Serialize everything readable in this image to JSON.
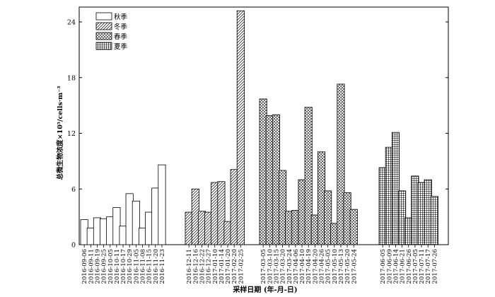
{
  "chart_data": {
    "type": "bar",
    "ylabel": "总微生物浓度×10⁵/cells·m⁻³",
    "xlabel": "采样日期 (年-月-日)",
    "ylim": [
      0,
      25
    ],
    "yticks": [
      0,
      6,
      12,
      18,
      24
    ],
    "legend_position": "top-left",
    "series": [
      {
        "name": "秋季",
        "pattern": "plain",
        "categories": [
          "2016-09-06",
          "2016-09-11",
          "2016-09-19",
          "2016-09-25",
          "2016-10-05",
          "2016-10-11",
          "2016-10-17",
          "2016-10-29",
          "2016-11-05",
          "2016-11-08",
          "2016-11-15",
          "2016-11-20",
          "2016-11-23"
        ],
        "values": [
          2.7,
          1.8,
          2.9,
          2.8,
          3.0,
          4.0,
          2.0,
          5.5,
          4.7,
          1.8,
          3.5,
          6.1,
          8.6
        ]
      },
      {
        "name": "冬季",
        "pattern": "diagonal",
        "categories": [
          "2016-12-11",
          "2016-12-16",
          "2016-12-22",
          "2016-12-27",
          "2017-01-10",
          "2017-01-14",
          "2017-01-20",
          "2017-02-20",
          "2017-02-25"
        ],
        "values": [
          3.5,
          6.0,
          3.6,
          3.5,
          6.7,
          6.8,
          2.5,
          8.1,
          25.2
        ]
      },
      {
        "name": "春季",
        "pattern": "crosshatch",
        "categories": [
          "2017-03-05",
          "2017-03-10",
          "2017-03-15",
          "2017-03-20",
          "2017-03-24",
          "2017-04-06",
          "2017-04-10",
          "2017-04-19",
          "2017-04-20",
          "2017-04-26",
          "2017-05-05",
          "2017-05-10",
          "2017-05-13",
          "2017-05-20",
          "2017-05-24"
        ],
        "values": [
          15.7,
          13.9,
          14.0,
          8.0,
          3.6,
          3.7,
          7.0,
          14.8,
          3.2,
          10.0,
          5.8,
          2.3,
          17.3,
          5.6,
          3.8
        ]
      },
      {
        "name": "夏季",
        "pattern": "grid",
        "categories": [
          "2017-06-05",
          "2017-06-09",
          "2017-06-14",
          "2017-06-21",
          "2017-06-26",
          "2017-07-05",
          "2017-07-11",
          "2017-07-17",
          "2017-07-26"
        ],
        "values": [
          8.3,
          10.5,
          12.1,
          5.8,
          2.9,
          7.4,
          6.7,
          7.0,
          5.2
        ]
      }
    ]
  }
}
